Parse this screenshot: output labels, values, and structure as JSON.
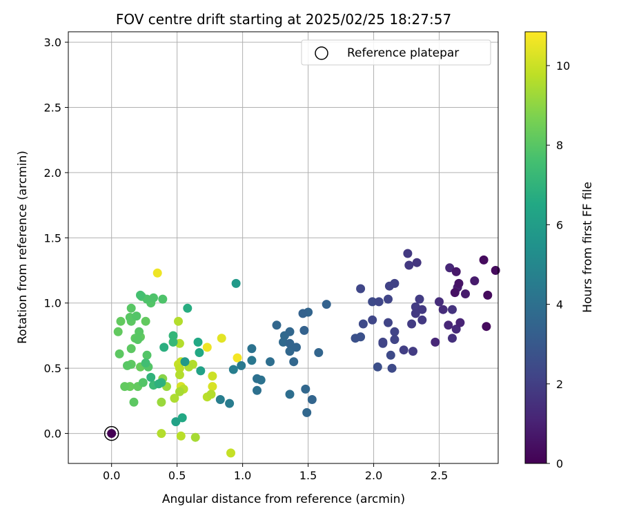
{
  "chart_data": {
    "type": "scatter",
    "title": "FOV centre drift starting at 2025/02/25 18:27:57",
    "xlabel": "Angular distance from reference (arcmin)",
    "ylabel": "Rotation from reference (arcmin)",
    "xlim": [
      -0.33,
      2.95
    ],
    "ylim": [
      -0.23,
      3.08
    ],
    "xticks": [
      0.0,
      0.5,
      1.0,
      1.5,
      2.0,
      2.5
    ],
    "yticks": [
      0.0,
      0.5,
      1.0,
      1.5,
      2.0,
      2.5,
      3.0
    ],
    "xtick_labels": [
      "0.0",
      "0.5",
      "1.0",
      "1.5",
      "2.0",
      "2.5"
    ],
    "ytick_labels": [
      "0.0",
      "0.5",
      "1.0",
      "1.5",
      "2.0",
      "2.5",
      "3.0"
    ],
    "grid": true,
    "legend": {
      "placement": "top-right",
      "entries": [
        {
          "label": "Reference platepar",
          "marker": "open-circle"
        }
      ]
    },
    "colorbar": {
      "label": "Hours from first FF file",
      "colormap": "viridis",
      "range": [
        0,
        10.85
      ],
      "ticks": [
        0,
        2,
        4,
        6,
        8,
        10
      ],
      "tick_labels": [
        "0",
        "2",
        "4",
        "6",
        "8",
        "10"
      ]
    },
    "reference_point": {
      "x": 0.0,
      "y": 0.0,
      "h": 0.0
    },
    "points": [
      {
        "x": 2.84,
        "y": 1.33,
        "h": 0.3
      },
      {
        "x": 2.93,
        "y": 1.25,
        "h": 0.3
      },
      {
        "x": 2.87,
        "y": 1.06,
        "h": 0.3
      },
      {
        "x": 2.86,
        "y": 0.82,
        "h": 0.3
      },
      {
        "x": 2.63,
        "y": 1.24,
        "h": 0.7
      },
      {
        "x": 2.65,
        "y": 1.15,
        "h": 0.6
      },
      {
        "x": 2.77,
        "y": 1.17,
        "h": 0.8
      },
      {
        "x": 2.7,
        "y": 1.07,
        "h": 0.8
      },
      {
        "x": 2.62,
        "y": 1.08,
        "h": 0.5
      },
      {
        "x": 2.64,
        "y": 1.12,
        "h": 0.9
      },
      {
        "x": 2.58,
        "y": 1.27,
        "h": 1.2
      },
      {
        "x": 2.53,
        "y": 0.95,
        "h": 1.4
      },
      {
        "x": 2.5,
        "y": 1.01,
        "h": 1.4
      },
      {
        "x": 2.57,
        "y": 0.83,
        "h": 1.2
      },
      {
        "x": 2.63,
        "y": 0.8,
        "h": 1.3
      },
      {
        "x": 2.6,
        "y": 0.73,
        "h": 1.5
      },
      {
        "x": 2.66,
        "y": 0.85,
        "h": 1.1
      },
      {
        "x": 2.47,
        "y": 0.7,
        "h": 1.2
      },
      {
        "x": 2.6,
        "y": 0.95,
        "h": 1.6
      },
      {
        "x": 2.26,
        "y": 1.38,
        "h": 1.8
      },
      {
        "x": 2.27,
        "y": 1.29,
        "h": 1.8
      },
      {
        "x": 2.33,
        "y": 1.31,
        "h": 1.7
      },
      {
        "x": 2.32,
        "y": 0.97,
        "h": 1.9
      },
      {
        "x": 2.35,
        "y": 1.03,
        "h": 1.9
      },
      {
        "x": 2.37,
        "y": 0.95,
        "h": 1.8
      },
      {
        "x": 2.32,
        "y": 0.92,
        "h": 1.8
      },
      {
        "x": 2.29,
        "y": 0.84,
        "h": 1.9
      },
      {
        "x": 2.37,
        "y": 0.87,
        "h": 1.8
      },
      {
        "x": 2.3,
        "y": 0.63,
        "h": 1.9
      },
      {
        "x": 2.23,
        "y": 0.64,
        "h": 2.0
      },
      {
        "x": 2.16,
        "y": 1.15,
        "h": 2.1
      },
      {
        "x": 2.12,
        "y": 1.13,
        "h": 2.1
      },
      {
        "x": 2.11,
        "y": 1.03,
        "h": 2.2
      },
      {
        "x": 2.04,
        "y": 1.01,
        "h": 2.3
      },
      {
        "x": 1.99,
        "y": 1.01,
        "h": 2.4
      },
      {
        "x": 1.99,
        "y": 0.87,
        "h": 2.3
      },
      {
        "x": 1.92,
        "y": 0.84,
        "h": 2.4
      },
      {
        "x": 1.9,
        "y": 1.11,
        "h": 2.3
      },
      {
        "x": 2.11,
        "y": 0.85,
        "h": 2.2
      },
      {
        "x": 2.16,
        "y": 0.78,
        "h": 2.2
      },
      {
        "x": 2.16,
        "y": 0.72,
        "h": 2.2
      },
      {
        "x": 2.07,
        "y": 0.7,
        "h": 2.2
      },
      {
        "x": 2.07,
        "y": 0.69,
        "h": 2.3
      },
      {
        "x": 2.13,
        "y": 0.6,
        "h": 2.4
      },
      {
        "x": 2.14,
        "y": 0.5,
        "h": 2.4
      },
      {
        "x": 2.03,
        "y": 0.51,
        "h": 2.6
      },
      {
        "x": 1.86,
        "y": 0.73,
        "h": 2.7
      },
      {
        "x": 1.9,
        "y": 0.74,
        "h": 2.7
      },
      {
        "x": 1.64,
        "y": 0.99,
        "h": 3.4
      },
      {
        "x": 1.5,
        "y": 0.93,
        "h": 3.5
      },
      {
        "x": 1.46,
        "y": 0.92,
        "h": 3.4
      },
      {
        "x": 1.47,
        "y": 0.79,
        "h": 3.4
      },
      {
        "x": 1.26,
        "y": 0.83,
        "h": 3.6
      },
      {
        "x": 1.36,
        "y": 0.78,
        "h": 3.6
      },
      {
        "x": 1.32,
        "y": 0.75,
        "h": 3.7
      },
      {
        "x": 1.31,
        "y": 0.7,
        "h": 3.7
      },
      {
        "x": 1.36,
        "y": 0.69,
        "h": 3.5
      },
      {
        "x": 1.41,
        "y": 0.66,
        "h": 3.5
      },
      {
        "x": 1.36,
        "y": 0.63,
        "h": 3.6
      },
      {
        "x": 1.39,
        "y": 0.55,
        "h": 3.6
      },
      {
        "x": 1.58,
        "y": 0.62,
        "h": 3.5
      },
      {
        "x": 1.21,
        "y": 0.55,
        "h": 3.9
      },
      {
        "x": 1.11,
        "y": 0.42,
        "h": 4.0
      },
      {
        "x": 1.14,
        "y": 0.41,
        "h": 4.1
      },
      {
        "x": 1.11,
        "y": 0.33,
        "h": 4.0
      },
      {
        "x": 1.36,
        "y": 0.3,
        "h": 3.9
      },
      {
        "x": 1.48,
        "y": 0.34,
        "h": 3.6
      },
      {
        "x": 1.53,
        "y": 0.26,
        "h": 3.5
      },
      {
        "x": 1.49,
        "y": 0.16,
        "h": 3.6
      },
      {
        "x": 1.07,
        "y": 0.65,
        "h": 4.1
      },
      {
        "x": 1.07,
        "y": 0.56,
        "h": 4.3
      },
      {
        "x": 0.99,
        "y": 0.52,
        "h": 4.4
      },
      {
        "x": 0.93,
        "y": 0.49,
        "h": 4.6
      },
      {
        "x": 0.9,
        "y": 0.23,
        "h": 4.5
      },
      {
        "x": 0.83,
        "y": 0.26,
        "h": 4.6
      },
      {
        "x": 0.95,
        "y": 1.15,
        "h": 5.8
      },
      {
        "x": 0.58,
        "y": 0.96,
        "h": 6.7
      },
      {
        "x": 0.66,
        "y": 0.7,
        "h": 6.5
      },
      {
        "x": 0.67,
        "y": 0.62,
        "h": 6.5
      },
      {
        "x": 0.68,
        "y": 0.48,
        "h": 6.2
      },
      {
        "x": 0.56,
        "y": 0.55,
        "h": 5.8
      },
      {
        "x": 0.54,
        "y": 0.12,
        "h": 6.5
      },
      {
        "x": 0.49,
        "y": 0.09,
        "h": 6.2
      },
      {
        "x": 0.47,
        "y": 0.75,
        "h": 7.1
      },
      {
        "x": 0.47,
        "y": 0.7,
        "h": 7.2
      },
      {
        "x": 0.4,
        "y": 0.66,
        "h": 6.8
      },
      {
        "x": 0.39,
        "y": 1.03,
        "h": 7.8
      },
      {
        "x": 0.32,
        "y": 1.04,
        "h": 7.8
      },
      {
        "x": 0.3,
        "y": 1.0,
        "h": 7.9
      },
      {
        "x": 0.23,
        "y": 1.05,
        "h": 7.8
      },
      {
        "x": 0.22,
        "y": 1.06,
        "h": 7.6
      },
      {
        "x": 0.27,
        "y": 1.03,
        "h": 7.8
      },
      {
        "x": 0.15,
        "y": 0.96,
        "h": 8.0
      },
      {
        "x": 0.19,
        "y": 0.9,
        "h": 7.9
      },
      {
        "x": 0.26,
        "y": 0.86,
        "h": 8.2
      },
      {
        "x": 0.14,
        "y": 0.89,
        "h": 8.0
      },
      {
        "x": 0.15,
        "y": 0.86,
        "h": 8.1
      },
      {
        "x": 0.07,
        "y": 0.86,
        "h": 8.2
      },
      {
        "x": 0.05,
        "y": 0.78,
        "h": 8.2
      },
      {
        "x": 0.21,
        "y": 0.78,
        "h": 8.0
      },
      {
        "x": 0.18,
        "y": 0.73,
        "h": 8.1
      },
      {
        "x": 0.22,
        "y": 0.74,
        "h": 8.2
      },
      {
        "x": 0.2,
        "y": 0.72,
        "h": 8.0
      },
      {
        "x": 0.15,
        "y": 0.65,
        "h": 8.1
      },
      {
        "x": 0.06,
        "y": 0.61,
        "h": 8.1
      },
      {
        "x": 0.27,
        "y": 0.6,
        "h": 7.9
      },
      {
        "x": 0.26,
        "y": 0.54,
        "h": 7.5
      },
      {
        "x": 0.28,
        "y": 0.51,
        "h": 7.9
      },
      {
        "x": 0.15,
        "y": 0.53,
        "h": 8.1
      },
      {
        "x": 0.12,
        "y": 0.52,
        "h": 8.0
      },
      {
        "x": 0.3,
        "y": 0.43,
        "h": 7.0
      },
      {
        "x": 0.24,
        "y": 0.39,
        "h": 7.9
      },
      {
        "x": 0.2,
        "y": 0.36,
        "h": 8.2
      },
      {
        "x": 0.1,
        "y": 0.36,
        "h": 8.2
      },
      {
        "x": 0.14,
        "y": 0.36,
        "h": 8.3
      },
      {
        "x": 0.17,
        "y": 0.24,
        "h": 8.1
      },
      {
        "x": 0.32,
        "y": 0.37,
        "h": 7.3
      },
      {
        "x": 0.36,
        "y": 0.38,
        "h": 6.9
      },
      {
        "x": 0.38,
        "y": 0.39,
        "h": 7.0
      },
      {
        "x": 0.22,
        "y": 0.51,
        "h": 8.3
      },
      {
        "x": 0.39,
        "y": 0.42,
        "h": 8.9
      },
      {
        "x": 0.42,
        "y": 0.36,
        "h": 9.2
      },
      {
        "x": 0.38,
        "y": 0.24,
        "h": 9.2
      },
      {
        "x": 0.48,
        "y": 0.27,
        "h": 9.5
      },
      {
        "x": 0.52,
        "y": 0.32,
        "h": 9.4
      },
      {
        "x": 0.55,
        "y": 0.34,
        "h": 9.7
      },
      {
        "x": 0.53,
        "y": 0.36,
        "h": 10.2
      },
      {
        "x": 0.52,
        "y": 0.45,
        "h": 9.6
      },
      {
        "x": 0.52,
        "y": 0.5,
        "h": 9.8
      },
      {
        "x": 0.51,
        "y": 0.53,
        "h": 9.9
      },
      {
        "x": 0.53,
        "y": 0.55,
        "h": 9.9
      },
      {
        "x": 0.59,
        "y": 0.51,
        "h": 9.5
      },
      {
        "x": 0.62,
        "y": 0.53,
        "h": 9.6
      },
      {
        "x": 0.52,
        "y": 0.69,
        "h": 9.6
      },
      {
        "x": 0.51,
        "y": 0.86,
        "h": 9.6
      },
      {
        "x": 0.38,
        "y": 0.0,
        "h": 9.6
      },
      {
        "x": 0.53,
        "y": -0.02,
        "h": 9.7
      },
      {
        "x": 0.64,
        "y": -0.03,
        "h": 9.4
      },
      {
        "x": 0.91,
        "y": -0.15,
        "h": 9.9
      },
      {
        "x": 0.35,
        "y": 1.23,
        "h": 10.6
      },
      {
        "x": 0.73,
        "y": 0.28,
        "h": 9.7
      },
      {
        "x": 0.76,
        "y": 0.3,
        "h": 9.6
      },
      {
        "x": 0.77,
        "y": 0.36,
        "h": 10.2
      },
      {
        "x": 0.77,
        "y": 0.44,
        "h": 10.0
      },
      {
        "x": 0.84,
        "y": 0.73,
        "h": 10.4
      },
      {
        "x": 0.73,
        "y": 0.66,
        "h": 10.6
      },
      {
        "x": 0.96,
        "y": 0.58,
        "h": 10.7
      }
    ]
  }
}
